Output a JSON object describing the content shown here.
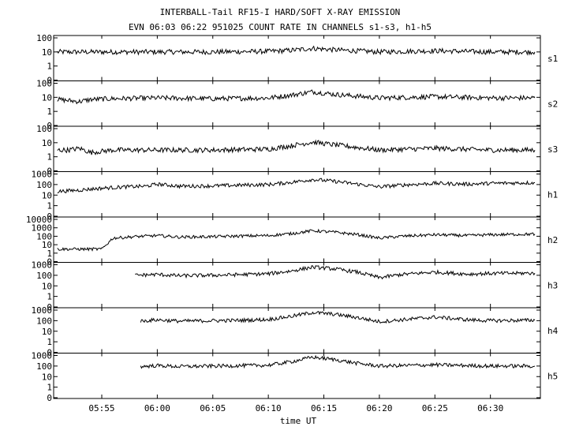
{
  "chart_data": {
    "type": "line",
    "title": "INTERBALL-Tail RF15-I HARD/SOFT X-RAY EMISSION",
    "subtitle": "EVN 06:03 06:22 951025  COUNT RATE IN CHANNELS s1-s3, h1-h5",
    "xlabel": "time UT",
    "x_ticks": [
      "05:55",
      "06:00",
      "06:05",
      "06:10",
      "06:15",
      "06:20",
      "06:25",
      "06:30"
    ],
    "xlim": [
      "05:50:40",
      "06:34:30"
    ],
    "y_scale": "log",
    "panels": [
      {
        "name": "s1",
        "y_ticks": [
          "100",
          "10",
          "1",
          "0"
        ],
        "series": [
          {
            "t": "05:51",
            "v": 10
          },
          {
            "t": "05:55",
            "v": 10
          },
          {
            "t": "05:56",
            "v": 10
          },
          {
            "t": "06:00",
            "v": 10
          },
          {
            "t": "06:05",
            "v": 10
          },
          {
            "t": "06:10",
            "v": 11
          },
          {
            "t": "06:12",
            "v": 13
          },
          {
            "t": "06:14",
            "v": 18
          },
          {
            "t": "06:16",
            "v": 14
          },
          {
            "t": "06:20",
            "v": 10
          },
          {
            "t": "06:25",
            "v": 12
          },
          {
            "t": "06:30",
            "v": 10
          },
          {
            "t": "06:34",
            "v": 10
          }
        ]
      },
      {
        "name": "s2",
        "y_ticks": [
          "100",
          "10",
          "1",
          "0"
        ],
        "series": [
          {
            "t": "05:51",
            "v": 7
          },
          {
            "t": "05:53",
            "v": 5
          },
          {
            "t": "05:54",
            "v": 7
          },
          {
            "t": "05:56",
            "v": 8
          },
          {
            "t": "06:00",
            "v": 9
          },
          {
            "t": "06:05",
            "v": 8
          },
          {
            "t": "06:10",
            "v": 9
          },
          {
            "t": "06:12",
            "v": 14
          },
          {
            "t": "06:14",
            "v": 25
          },
          {
            "t": "06:16",
            "v": 16
          },
          {
            "t": "06:20",
            "v": 9
          },
          {
            "t": "06:25",
            "v": 11
          },
          {
            "t": "06:30",
            "v": 9
          },
          {
            "t": "06:34",
            "v": 9
          }
        ]
      },
      {
        "name": "s3",
        "y_ticks": [
          "100",
          "10",
          "1",
          "0"
        ],
        "series": [
          {
            "t": "05:51",
            "v": 3
          },
          {
            "t": "05:52",
            "v": 3
          },
          {
            "t": "05:53",
            "v": 4
          },
          {
            "t": "05:54",
            "v": 2
          },
          {
            "t": "05:56",
            "v": 3
          },
          {
            "t": "06:00",
            "v": 3
          },
          {
            "t": "06:05",
            "v": 3
          },
          {
            "t": "06:10",
            "v": 3.5
          },
          {
            "t": "06:12",
            "v": 6
          },
          {
            "t": "06:14",
            "v": 11
          },
          {
            "t": "06:16",
            "v": 7
          },
          {
            "t": "06:20",
            "v": 3
          },
          {
            "t": "06:25",
            "v": 4
          },
          {
            "t": "06:30",
            "v": 3
          },
          {
            "t": "06:34",
            "v": 3
          }
        ]
      },
      {
        "name": "h1",
        "y_ticks": [
          "1000",
          "100",
          "10",
          "1",
          "0"
        ],
        "series": [
          {
            "t": "05:51",
            "v": 22
          },
          {
            "t": "05:53",
            "v": 30
          },
          {
            "t": "05:55",
            "v": 45
          },
          {
            "t": "05:57",
            "v": 60
          },
          {
            "t": "05:59",
            "v": 70
          },
          {
            "t": "06:00",
            "v": 110
          },
          {
            "t": "06:02",
            "v": 70
          },
          {
            "t": "06:05",
            "v": 75
          },
          {
            "t": "06:08",
            "v": 90
          },
          {
            "t": "06:10",
            "v": 100
          },
          {
            "t": "06:12",
            "v": 160
          },
          {
            "t": "06:14",
            "v": 300
          },
          {
            "t": "06:16",
            "v": 200
          },
          {
            "t": "06:18",
            "v": 110
          },
          {
            "t": "06:20",
            "v": 60
          },
          {
            "t": "06:22",
            "v": 90
          },
          {
            "t": "06:25",
            "v": 130
          },
          {
            "t": "06:28",
            "v": 110
          },
          {
            "t": "06:30",
            "v": 130
          },
          {
            "t": "06:34",
            "v": 150
          }
        ]
      },
      {
        "name": "h2",
        "y_ticks": [
          "10000",
          "1000",
          "100",
          "10",
          "1",
          "0"
        ],
        "series": [
          {
            "t": "05:51",
            "v": 3
          },
          {
            "t": "05:55",
            "v": 3
          },
          {
            "t": "05:56",
            "v": 60
          },
          {
            "t": "05:58",
            "v": 90
          },
          {
            "t": "06:00",
            "v": 120
          },
          {
            "t": "06:02",
            "v": 80
          },
          {
            "t": "06:05",
            "v": 90
          },
          {
            "t": "06:08",
            "v": 110
          },
          {
            "t": "06:10",
            "v": 120
          },
          {
            "t": "06:12",
            "v": 200
          },
          {
            "t": "06:14",
            "v": 450
          },
          {
            "t": "06:16",
            "v": 300
          },
          {
            "t": "06:18",
            "v": 160
          },
          {
            "t": "06:20",
            "v": 60
          },
          {
            "t": "06:22",
            "v": 100
          },
          {
            "t": "06:25",
            "v": 150
          },
          {
            "t": "06:28",
            "v": 120
          },
          {
            "t": "06:30",
            "v": 150
          },
          {
            "t": "06:34",
            "v": 180
          }
        ]
      },
      {
        "name": "h3",
        "y_ticks": [
          "1000",
          "100",
          "10",
          "1",
          "0"
        ],
        "series": [
          {
            "t": "05:58",
            "v": 100
          },
          {
            "t": "06:00",
            "v": 120
          },
          {
            "t": "06:02",
            "v": 90
          },
          {
            "t": "06:05",
            "v": 100
          },
          {
            "t": "06:08",
            "v": 120
          },
          {
            "t": "06:10",
            "v": 140
          },
          {
            "t": "06:12",
            "v": 250
          },
          {
            "t": "06:14",
            "v": 600
          },
          {
            "t": "06:16",
            "v": 400
          },
          {
            "t": "06:18",
            "v": 200
          },
          {
            "t": "06:20",
            "v": 60
          },
          {
            "t": "06:22",
            "v": 120
          },
          {
            "t": "06:25",
            "v": 200
          },
          {
            "t": "06:28",
            "v": 130
          },
          {
            "t": "06:30",
            "v": 150
          },
          {
            "t": "06:34",
            "v": 160
          }
        ]
      },
      {
        "name": "h4",
        "y_ticks": [
          "1000",
          "100",
          "10",
          "1",
          "0"
        ],
        "series": [
          {
            "t": "05:58:30",
            "v": 90
          },
          {
            "t": "06:00",
            "v": 120
          },
          {
            "t": "06:02",
            "v": 90
          },
          {
            "t": "06:05",
            "v": 100
          },
          {
            "t": "06:08",
            "v": 110
          },
          {
            "t": "06:10",
            "v": 130
          },
          {
            "t": "06:12",
            "v": 250
          },
          {
            "t": "06:14",
            "v": 600
          },
          {
            "t": "06:16",
            "v": 400
          },
          {
            "t": "06:18",
            "v": 200
          },
          {
            "t": "06:20",
            "v": 80
          },
          {
            "t": "06:22",
            "v": 120
          },
          {
            "t": "06:25",
            "v": 220
          },
          {
            "t": "06:28",
            "v": 120
          },
          {
            "t": "06:30",
            "v": 100
          },
          {
            "t": "06:34",
            "v": 110
          }
        ]
      },
      {
        "name": "h5",
        "y_ticks": [
          "1000",
          "100",
          "10",
          "1",
          "0"
        ],
        "series": [
          {
            "t": "05:58:30",
            "v": 90
          },
          {
            "t": "06:00",
            "v": 110
          },
          {
            "t": "06:02",
            "v": 90
          },
          {
            "t": "06:05",
            "v": 100
          },
          {
            "t": "06:08",
            "v": 110
          },
          {
            "t": "06:10",
            "v": 120
          },
          {
            "t": "06:12",
            "v": 250
          },
          {
            "t": "06:14",
            "v": 700
          },
          {
            "t": "06:16",
            "v": 400
          },
          {
            "t": "06:18",
            "v": 180
          },
          {
            "t": "06:20",
            "v": 100
          },
          {
            "t": "06:22",
            "v": 110
          },
          {
            "t": "06:25",
            "v": 130
          },
          {
            "t": "06:28",
            "v": 110
          },
          {
            "t": "06:30",
            "v": 100
          },
          {
            "t": "06:34",
            "v": 100
          }
        ]
      }
    ]
  }
}
